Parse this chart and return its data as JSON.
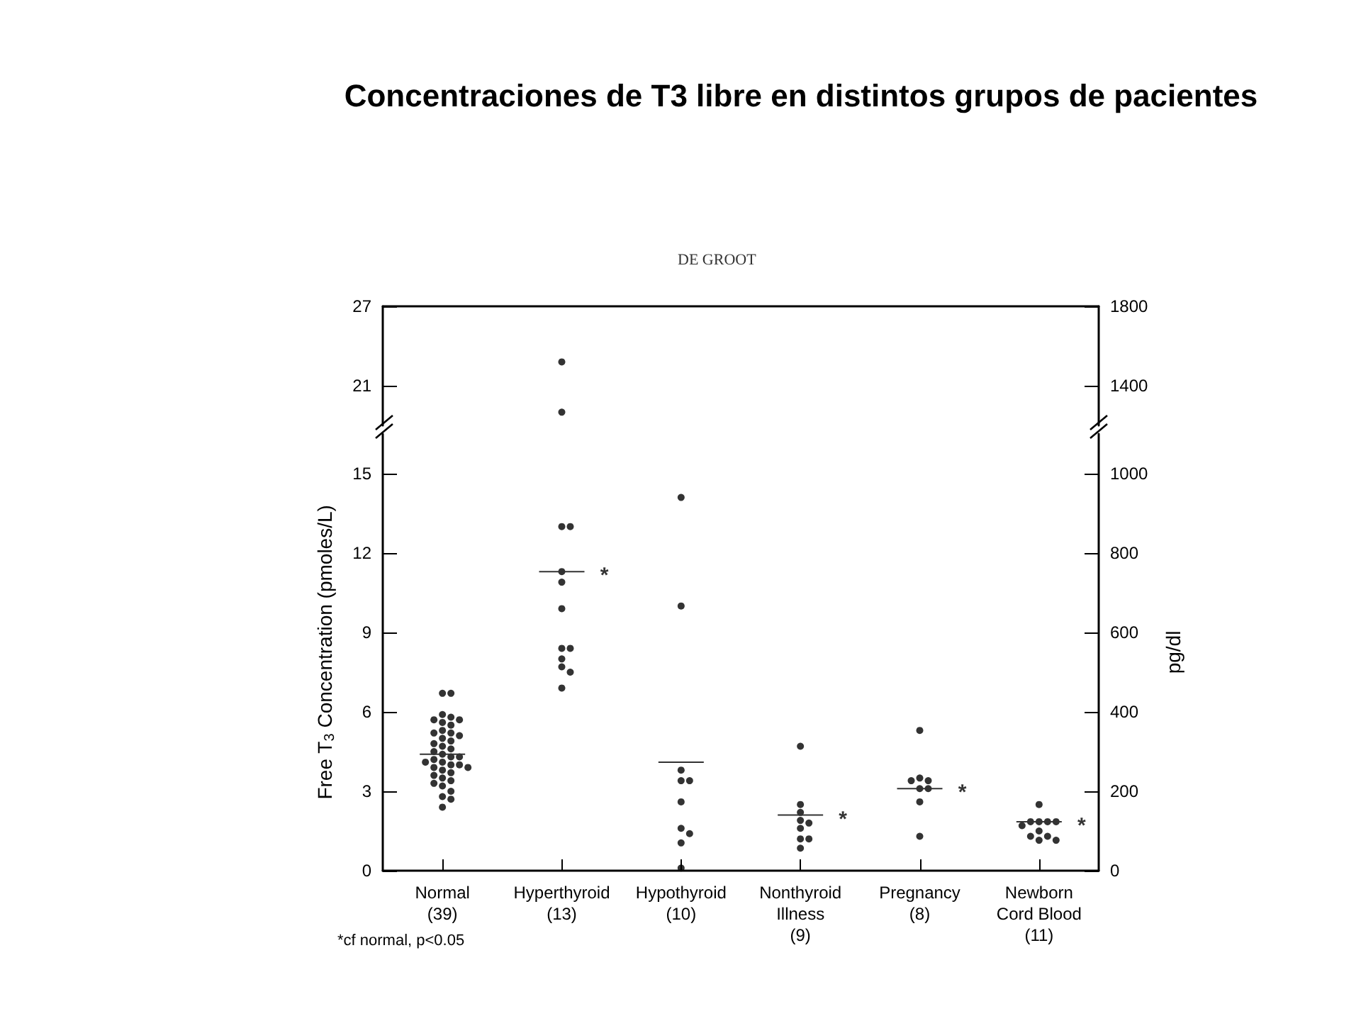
{
  "chart_data": [
    {
      "type": "scatter",
      "title": "Concentraciones de T3 libre en distintos grupos de pacientes",
      "annotations": [
        "DE GROOT"
      ],
      "categories": [
        "Normal\n(39)",
        "Hyperthyroid\n(13)",
        "Hypothyroid\n(10)",
        "Nonthyroid\nIllness\n(9)",
        "Pregnancy\n(8)",
        "Newborn\nCord Blood\n(11)"
      ],
      "ylim": [
        18,
        27
      ],
      "yticks": [
        21,
        27
      ],
      "y2lim": [
        1200,
        1800
      ],
      "y2ticks": [
        1400,
        1800
      ],
      "tick_labels": "y",
      "marker": "circle",
      "series": [
        {
          "color": "#000000",
          "x": [
            "Hyperthyroid\n(13)",
            "Hyperthyroid\n(13)"
          ],
          "values": [
            22.8,
            19.0
          ]
        }
      ]
    },
    {
      "type": "scatter",
      "ylabel": "Free T$_{3}$ Concentration (pmoles/L)",
      "y2label": "pg/dl",
      "categories": [
        "Normal\n(39)",
        "Hyperthyroid\n(13)",
        "Hypothyroid\n(10)",
        "Nonthyroid\nIllness\n(9)",
        "Pregnancy\n(8)",
        "Newborn\nCord Blood\n(11)"
      ],
      "ylim": [
        0,
        16.5
      ],
      "yticks": [
        0,
        3,
        6,
        9,
        12,
        15
      ],
      "y2lim": [
        0,
        1100
      ],
      "y2ticks": [
        0,
        200,
        400,
        600,
        800,
        1000
      ],
      "marker": "circle",
      "annotations": [
        {
          "text": "*",
          "x": "Hyperthyroid\n(13)",
          "y": 11.3
        },
        {
          "text": "*",
          "x": "Nonthyroid\nIllness\n(9)",
          "y": 2.1
        },
        {
          "text": "*",
          "x": "Pregnancy\n(8)",
          "y": 3.1
        },
        {
          "text": "*",
          "x": "Newborn\nCord Blood\n(11)",
          "y": 1.85
        },
        "*cf normal, p<0.05"
      ],
      "series": [
        {
          "color": "#000000",
          "x": [
            "Normal\n(39)",
            "Normal\n(39)",
            "Normal\n(39)",
            "Normal\n(39)",
            "Normal\n(39)",
            "Normal\n(39)",
            "Normal\n(39)",
            "Normal\n(39)",
            "Normal\n(39)",
            "Normal\n(39)",
            "Normal\n(39)",
            "Normal\n(39)",
            "Normal\n(39)",
            "Normal\n(39)",
            "Normal\n(39)",
            "Normal\n(39)",
            "Normal\n(39)",
            "Normal\n(39)",
            "Normal\n(39)",
            "Normal\n(39)",
            "Normal\n(39)",
            "Normal\n(39)",
            "Normal\n(39)",
            "Normal\n(39)",
            "Normal\n(39)",
            "Normal\n(39)",
            "Normal\n(39)",
            "Normal\n(39)",
            "Normal\n(39)",
            "Normal\n(39)",
            "Normal\n(39)",
            "Normal\n(39)",
            "Normal\n(39)",
            "Normal\n(39)",
            "Normal\n(39)",
            "Normal\n(39)",
            "Normal\n(39)",
            "Normal\n(39)",
            "Normal\n(39)",
            "Hyperthyroid\n(13)",
            "Hyperthyroid\n(13)",
            "Hyperthyroid\n(13)",
            "Hyperthyroid\n(13)",
            "Hyperthyroid\n(13)",
            "Hyperthyroid\n(13)",
            "Hyperthyroid\n(13)",
            "Hyperthyroid\n(13)",
            "Hyperthyroid\n(13)",
            "Hyperthyroid\n(13)",
            "Hyperthyroid\n(13)",
            "Hypothyroid\n(10)",
            "Hypothyroid\n(10)",
            "Hypothyroid\n(10)",
            "Hypothyroid\n(10)",
            "Hypothyroid\n(10)",
            "Hypothyroid\n(10)",
            "Hypothyroid\n(10)",
            "Hypothyroid\n(10)",
            "Hypothyroid\n(10)",
            "Hypothyroid\n(10)",
            "Nonthyroid\nIllness\n(9)",
            "Nonthyroid\nIllness\n(9)",
            "Nonthyroid\nIllness\n(9)",
            "Nonthyroid\nIllness\n(9)",
            "Nonthyroid\nIllness\n(9)",
            "Nonthyroid\nIllness\n(9)",
            "Nonthyroid\nIllness\n(9)",
            "Nonthyroid\nIllness\n(9)",
            "Nonthyroid\nIllness\n(9)",
            "Pregnancy\n(8)",
            "Pregnancy\n(8)",
            "Pregnancy\n(8)",
            "Pregnancy\n(8)",
            "Pregnancy\n(8)",
            "Pregnancy\n(8)",
            "Pregnancy\n(8)",
            "Pregnancy\n(8)",
            "Newborn\nCord Blood\n(11)",
            "Newborn\nCord Blood\n(11)",
            "Newborn\nCord Blood\n(11)",
            "Newborn\nCord Blood\n(11)",
            "Newborn\nCord Blood\n(11)",
            "Newborn\nCord Blood\n(11)",
            "Newborn\nCord Blood\n(11)",
            "Newborn\nCord Blood\n(11)",
            "Newborn\nCord Blood\n(11)",
            "Newborn\nCord Blood\n(11)",
            "Newborn\nCord Blood\n(11)"
          ],
          "values": [
            6.7,
            6.7,
            5.9,
            5.8,
            5.7,
            5.7,
            5.6,
            5.5,
            5.3,
            5.2,
            5.2,
            5.1,
            5.0,
            4.9,
            4.8,
            4.7,
            4.6,
            4.5,
            4.4,
            4.3,
            4.3,
            4.2,
            4.1,
            4.1,
            4.0,
            4.0,
            3.9,
            3.9,
            3.8,
            3.7,
            3.6,
            3.5,
            3.4,
            3.3,
            3.2,
            3.0,
            2.8,
            2.7,
            2.4,
            13,
            13,
            11.3,
            10.9,
            9.9,
            8.4,
            8.4,
            8.0,
            7.7,
            7.5,
            6.9,
            14.1,
            10.0,
            3.8,
            3.4,
            3.4,
            2.6,
            1.6,
            1.4,
            1.05,
            0.1,
            4.7,
            2.5,
            2.2,
            1.9,
            1.8,
            1.6,
            1.2,
            1.2,
            0.85,
            5.3,
            3.5,
            3.4,
            3.4,
            3.1,
            3.1,
            2.6,
            1.3,
            2.5,
            1.85,
            1.85,
            1.85,
            1.85,
            1.7,
            1.5,
            1.3,
            1.3,
            1.15,
            1.15
          ]
        },
        {
          "type": "box",
          "color": "#333333",
          "boxes": [
            {
              "low": 4.4,
              "q1": 4.4,
              "median": 4.4,
              "q3": 4.4,
              "high": 4.4
            },
            {
              "low": 11.3,
              "q1": 11.3,
              "median": 11.3,
              "q3": 11.3,
              "high": 11.3
            },
            {
              "low": 4.1,
              "q1": 4.1,
              "median": 4.1,
              "q3": 4.1,
              "high": 4.1
            },
            {
              "low": 2.1,
              "q1": 2.1,
              "median": 2.1,
              "q3": 2.1,
              "high": 2.1
            },
            {
              "low": 3.1,
              "q1": 3.1,
              "median": 3.1,
              "q3": 3.1,
              "high": 3.1
            },
            {
              "low": 1.85,
              "q1": 1.85,
              "median": 1.85,
              "q3": 1.85,
              "high": 1.85
            }
          ]
        }
      ]
    }
  ]
}
